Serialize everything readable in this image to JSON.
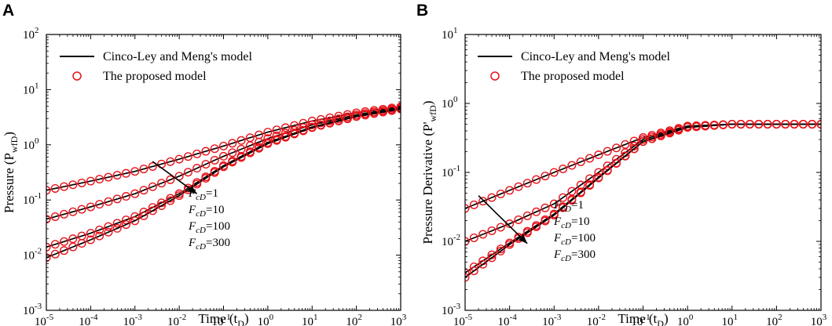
{
  "chart_data": [
    {
      "panel": "A",
      "type": "line",
      "xscale": "log",
      "yscale": "log",
      "xlim": [
        1e-05,
        1000
      ],
      "ylim": [
        0.001,
        100
      ],
      "xlabel": "Time (t_D)",
      "ylabel": "Pressure (P_wfD)",
      "xlabel_main": "Time (t",
      "xlabel_sub": "D",
      "xlabel_close": ")",
      "ylabel_main": "Pressure (P",
      "ylabel_sub": "wfD",
      "ylabel_close": ")",
      "x_ticks": [
        -5,
        -4,
        -3,
        -2,
        -1,
        0,
        1,
        2,
        3
      ],
      "y_ticks": [
        -3,
        -2,
        -1,
        0,
        1,
        2
      ],
      "legend": [
        "Cinco-Ley and Meng's model",
        "The proposed model"
      ],
      "annotation": {
        "labels": [
          "F_cD=1",
          "F_cD=10",
          "F_cD=100",
          "F_cD=300"
        ],
        "arrow_from": [
          0.0025,
          0.5
        ],
        "arrow_to": [
          0.025,
          0.13
        ]
      },
      "series": [
        {
          "name": "F_cD=1",
          "x": [
            1e-05,
            0.0001,
            0.001,
            0.01,
            0.1,
            1,
            10,
            100,
            1000
          ],
          "y": [
            0.15,
            0.22,
            0.33,
            0.55,
            0.95,
            1.7,
            2.7,
            3.8,
            4.9
          ]
        },
        {
          "name": "F_cD=10",
          "x": [
            1e-05,
            0.0001,
            0.001,
            0.01,
            0.1,
            1,
            10,
            100,
            1000
          ],
          "y": [
            0.045,
            0.075,
            0.13,
            0.27,
            0.62,
            1.3,
            2.3,
            3.5,
            4.7
          ]
        },
        {
          "name": "F_cD=100",
          "x": [
            1e-05,
            0.0001,
            0.001,
            0.01,
            0.1,
            1,
            10,
            100,
            1000
          ],
          "y": [
            0.014,
            0.025,
            0.05,
            0.13,
            0.42,
            1.1,
            2.1,
            3.3,
            4.5
          ]
        },
        {
          "name": "F_cD=300",
          "x": [
            1e-05,
            0.0001,
            0.001,
            0.01,
            0.1,
            1,
            10,
            100,
            1000
          ],
          "y": [
            0.009,
            0.019,
            0.042,
            0.12,
            0.4,
            1.05,
            2.05,
            3.25,
            4.45
          ]
        }
      ]
    },
    {
      "panel": "B",
      "type": "line",
      "xscale": "log",
      "yscale": "log",
      "xlim": [
        1e-05,
        1000
      ],
      "ylim": [
        0.001,
        10
      ],
      "xlabel": "Time (t_D)",
      "ylabel": "Pressure Derivative (P'_wfD)",
      "xlabel_main": "Time (t",
      "xlabel_sub": "D",
      "xlabel_close": ")",
      "ylabel_main": "Pressure Derivative (P'",
      "ylabel_sub": "wfD",
      "ylabel_close": ")",
      "x_ticks": [
        -5,
        -4,
        -3,
        -2,
        -1,
        0,
        1,
        2,
        3
      ],
      "y_ticks": [
        -3,
        -2,
        -1,
        0,
        1
      ],
      "legend": [
        "Cinco-Ley and Meng's model",
        "The proposed model"
      ],
      "annotation": {
        "labels": [
          "F_cD=1",
          "F_cD=10",
          "F_cD=100",
          "F_cD=300"
        ],
        "arrow_from": [
          2e-05,
          0.046
        ],
        "arrow_to": [
          0.00025,
          0.0093
        ]
      },
      "series": [
        {
          "name": "F_cD=1",
          "x": [
            1e-05,
            0.0001,
            0.001,
            0.01,
            0.1,
            1,
            10,
            100,
            1000
          ],
          "y": [
            0.03,
            0.055,
            0.1,
            0.18,
            0.32,
            0.47,
            0.5,
            0.5,
            0.5
          ]
        },
        {
          "name": "F_cD=10",
          "x": [
            1e-05,
            0.0001,
            0.001,
            0.01,
            0.1,
            1,
            10,
            100,
            1000
          ],
          "y": [
            0.01,
            0.018,
            0.035,
            0.1,
            0.3,
            0.46,
            0.5,
            0.5,
            0.5
          ]
        },
        {
          "name": "F_cD=100",
          "x": [
            1e-05,
            0.0001,
            0.001,
            0.01,
            0.1,
            1,
            10,
            100,
            1000
          ],
          "y": [
            0.0035,
            0.0095,
            0.025,
            0.085,
            0.28,
            0.45,
            0.5,
            0.5,
            0.5
          ]
        },
        {
          "name": "F_cD=300",
          "x": [
            1e-05,
            0.0001,
            0.001,
            0.01,
            0.1,
            1,
            10,
            100,
            1000
          ],
          "y": [
            0.003,
            0.009,
            0.024,
            0.083,
            0.28,
            0.45,
            0.5,
            0.5,
            0.5
          ]
        }
      ]
    }
  ],
  "colors": {
    "model_line": "#000000",
    "marker": "#e8141b"
  }
}
